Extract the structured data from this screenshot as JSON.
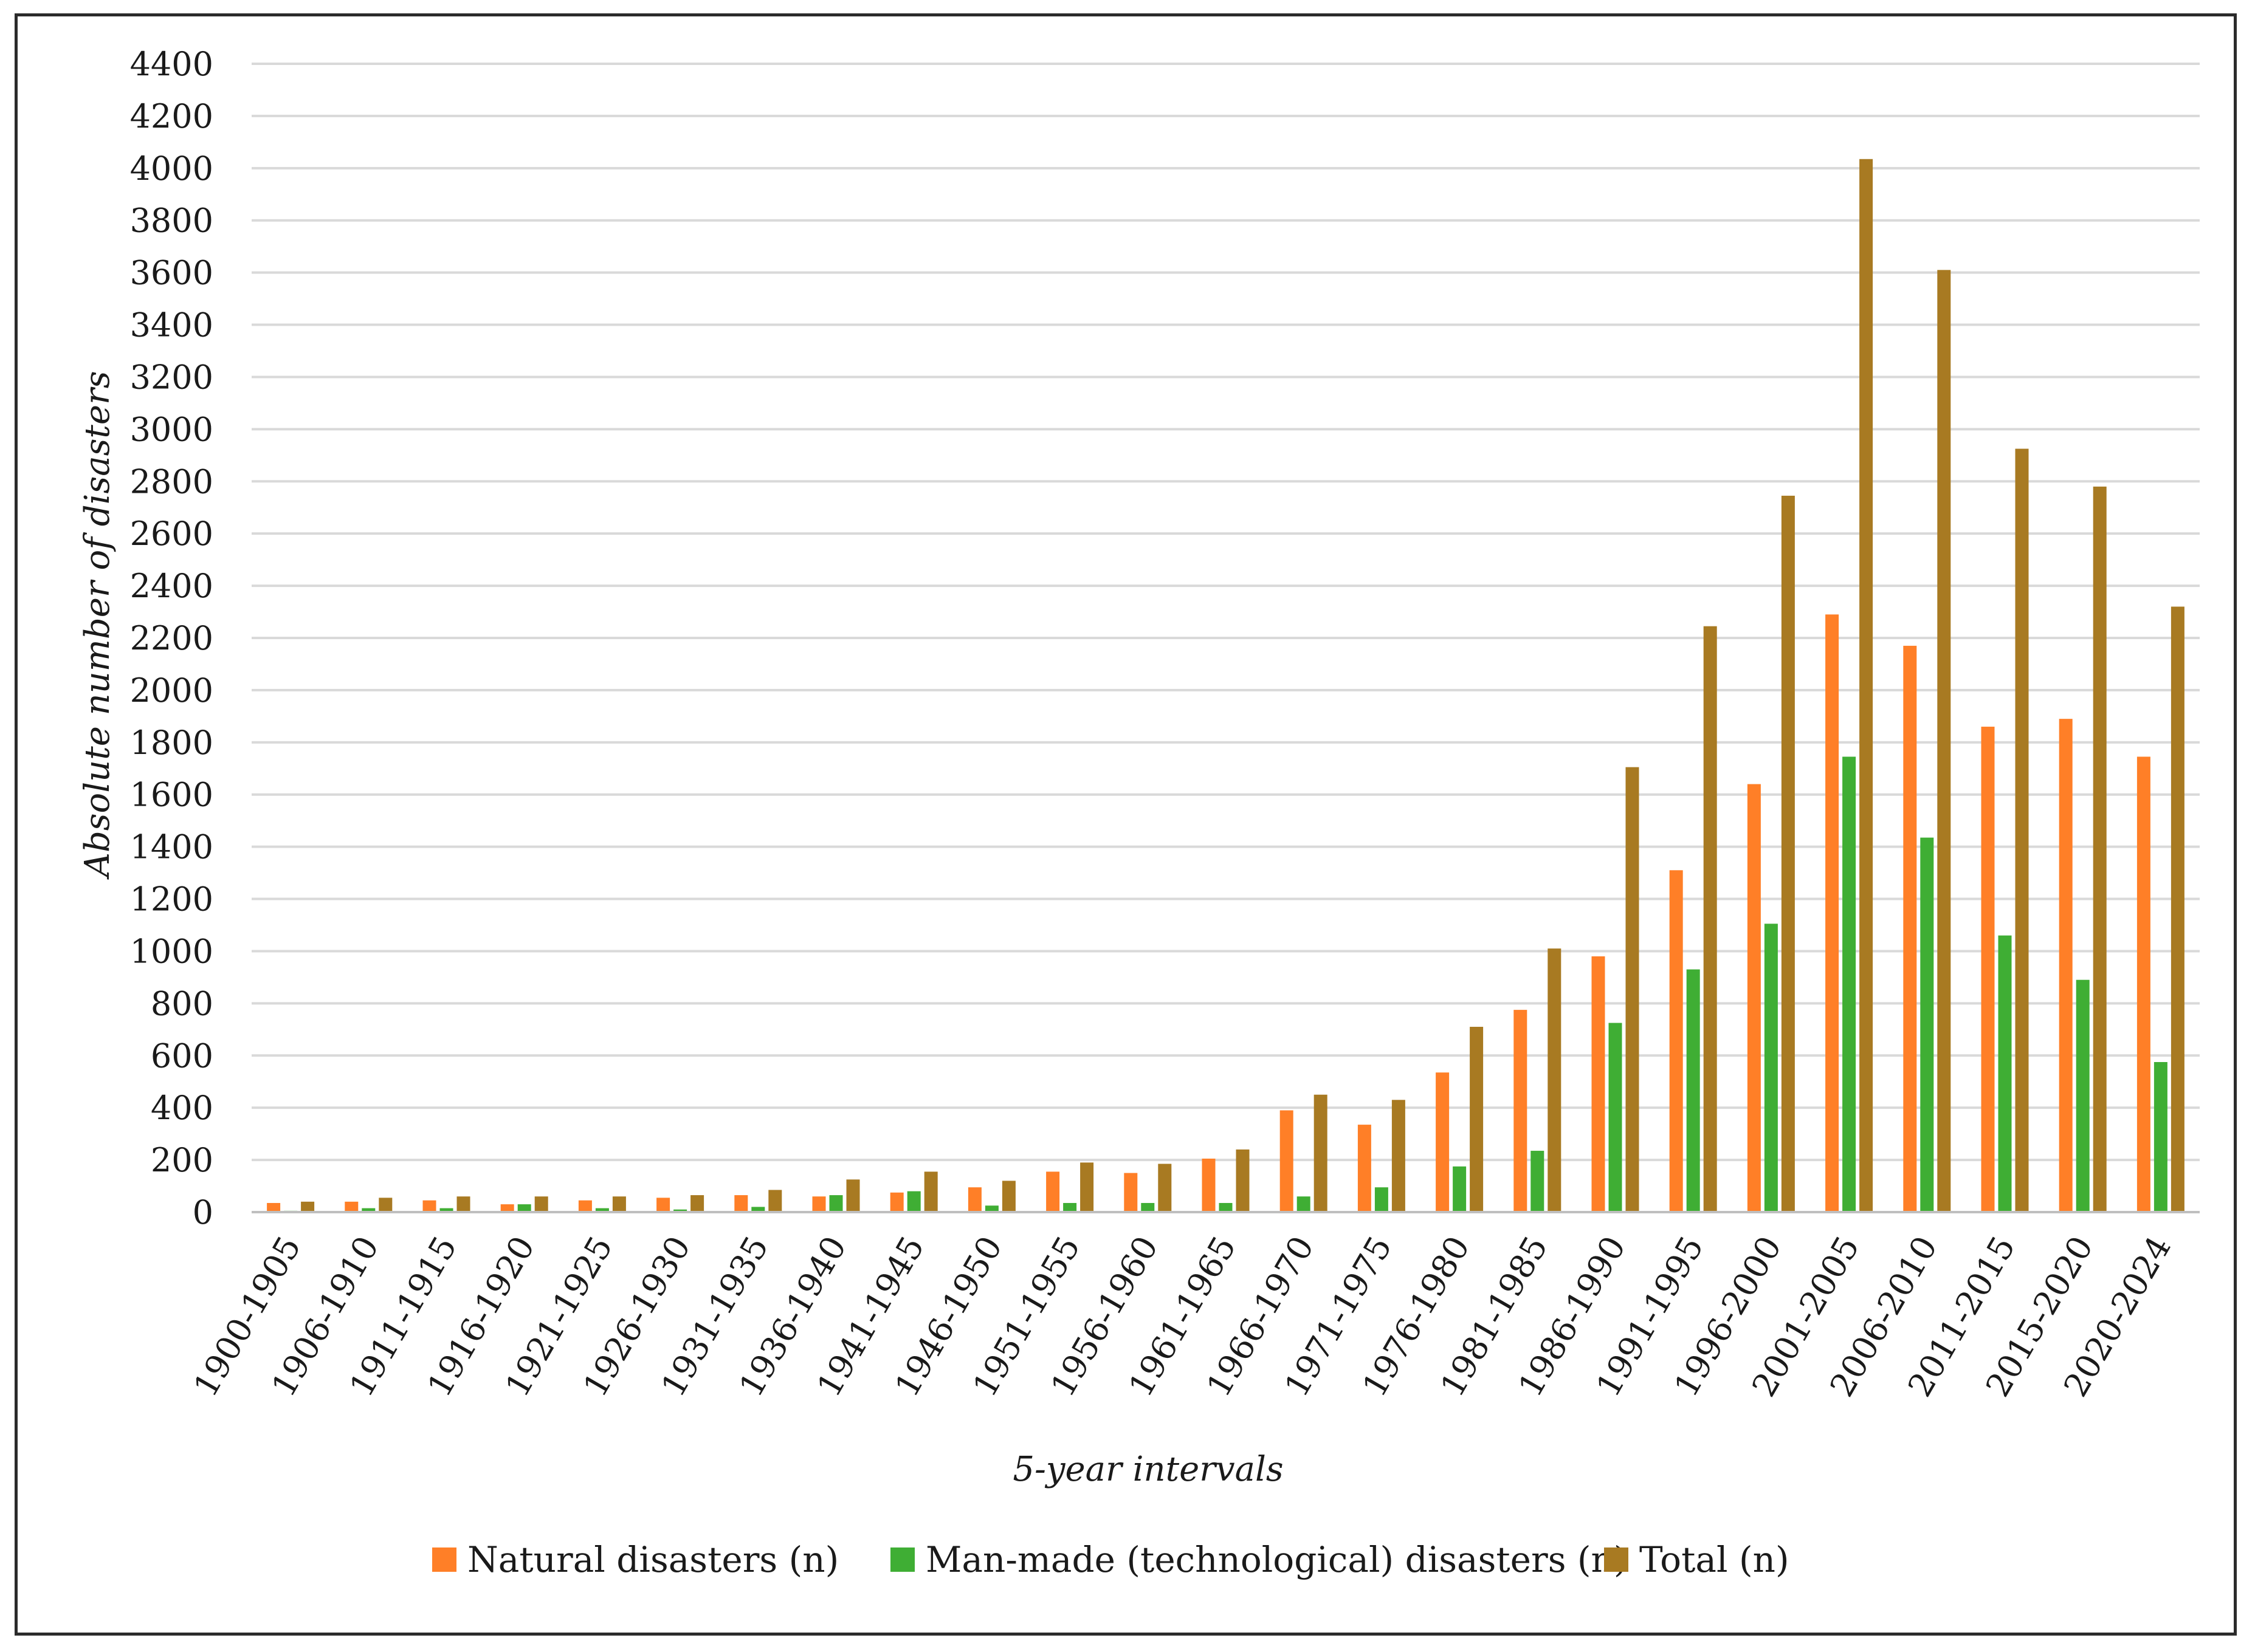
{
  "chart_data": {
    "type": "bar",
    "title": "",
    "xlabel": "5-year intervals",
    "ylabel": "Absolute number of disasters",
    "ylim": [
      0,
      4400
    ],
    "yticks": [
      0,
      200,
      400,
      600,
      800,
      1000,
      1200,
      1400,
      1600,
      1800,
      2000,
      2200,
      2400,
      2600,
      2800,
      3000,
      3200,
      3400,
      3600,
      3800,
      4000,
      4200,
      4400
    ],
    "grid": true,
    "legend_position": "bottom",
    "categories": [
      "1900-1905",
      "1906-1910",
      "1911-1915",
      "1916-1920",
      "1921-1925",
      "1926-1930",
      "1931-1935",
      "1936-1940",
      "1941-1945",
      "1946-1950",
      "1951-1955",
      "1956-1960",
      "1961-1965",
      "1966-1970",
      "1971-1975",
      "1976-1980",
      "1981-1985",
      "1986-1990",
      "1991-1995",
      "1996-2000",
      "2001-2005",
      "2006-2010",
      "2011-2015",
      "2015-2020",
      "2020-2024"
    ],
    "series": [
      {
        "name": "Natural disasters (n)",
        "color": "#ff7f27",
        "values": [
          35,
          40,
          45,
          30,
          45,
          55,
          65,
          60,
          75,
          95,
          155,
          150,
          205,
          390,
          335,
          535,
          775,
          980,
          1310,
          1640,
          2290,
          2170,
          1860,
          1890,
          1745
        ]
      },
      {
        "name": "Man-made (technological) disasters (n)",
        "color": "#3fae34",
        "values": [
          5,
          15,
          15,
          30,
          15,
          10,
          20,
          65,
          80,
          25,
          35,
          35,
          35,
          60,
          95,
          175,
          235,
          725,
          930,
          1105,
          1745,
          1435,
          1060,
          890,
          575
        ]
      },
      {
        "name": "Total (n)",
        "color": "#a87a22",
        "values": [
          40,
          55,
          60,
          60,
          60,
          65,
          85,
          125,
          155,
          120,
          190,
          185,
          240,
          450,
          430,
          710,
          1010,
          1705,
          2245,
          2745,
          4035,
          3610,
          2925,
          2780,
          2320
        ]
      }
    ]
  }
}
